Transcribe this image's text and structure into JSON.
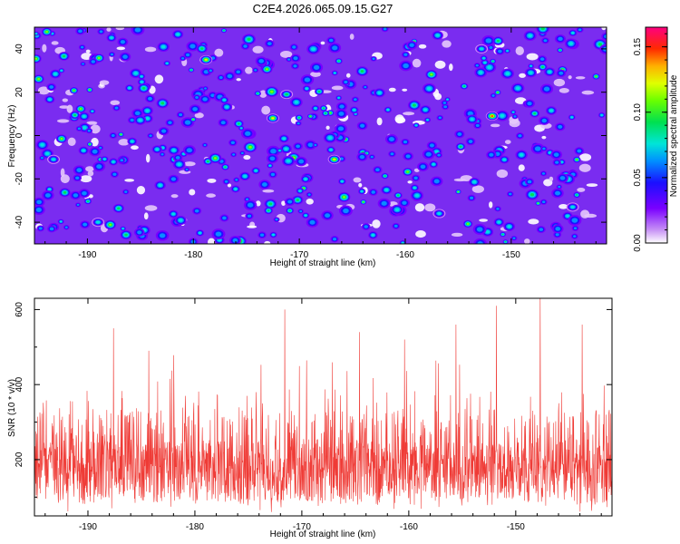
{
  "chart_data": [
    {
      "type": "heatmap",
      "title": "C2E4.2026.065.09.15.G27",
      "xlabel": "Height of straight line (km)",
      "ylabel": "Frequency (Hz)",
      "xlim": [
        -195,
        -141
      ],
      "ylim": [
        -50,
        50
      ],
      "xticks": [
        -190,
        -180,
        -170,
        -160,
        -150
      ],
      "yticks": [
        -40,
        -20,
        0,
        20,
        40
      ],
      "colorbar": {
        "label": "Normalized spectral amplitude",
        "range": [
          0.0,
          0.165
        ],
        "ticks": [
          0.0,
          0.05,
          0.1,
          0.15
        ],
        "tick_labels": [
          "0.00",
          "0.05",
          "0.10",
          "0.15"
        ],
        "colormap": "rainbow (white-violet-blue-cyan-green-yellow-red-magenta)"
      },
      "hot_spots": [
        {
          "x": -178.8,
          "y": 35,
          "value": 0.14
        },
        {
          "x": -172.5,
          "y": 8,
          "value": 0.15
        },
        {
          "x": -166.7,
          "y": -11,
          "value": 0.14
        },
        {
          "x": -151.8,
          "y": 9,
          "value": 0.16
        },
        {
          "x": -171.2,
          "y": 19,
          "value": 0.11
        },
        {
          "x": -193.2,
          "y": -11,
          "value": 0.09
        },
        {
          "x": -156.8,
          "y": -36,
          "value": 0.1
        },
        {
          "x": -152.8,
          "y": 40,
          "value": 0.09
        },
        {
          "x": -144.2,
          "y": -33,
          "value": 0.1
        },
        {
          "x": -189,
          "y": -40,
          "value": 0.09
        }
      ]
    },
    {
      "type": "line",
      "xlabel": "Height of straight line (km)",
      "ylabel": "SNR (10 * v/v)",
      "xlim": [
        -195,
        -141
      ],
      "ylim": [
        50,
        630
      ],
      "xticks": [
        -190,
        -180,
        -170,
        -160,
        -150
      ],
      "yticks": [
        200,
        400,
        600
      ],
      "color": "#ef3b36",
      "series_summary": {
        "typical_range": [
          90,
          300
        ],
        "mean": 180,
        "peaks": [
          {
            "x": -187.6,
            "y": 550
          },
          {
            "x": -184.3,
            "y": 490
          },
          {
            "x": -171.6,
            "y": 600
          },
          {
            "x": -164.6,
            "y": 540
          },
          {
            "x": -160.4,
            "y": 520
          },
          {
            "x": -155.6,
            "y": 560
          },
          {
            "x": -151.8,
            "y": 610
          },
          {
            "x": -147.7,
            "y": 630
          },
          {
            "x": -143.8,
            "y": 560
          }
        ]
      }
    }
  ]
}
